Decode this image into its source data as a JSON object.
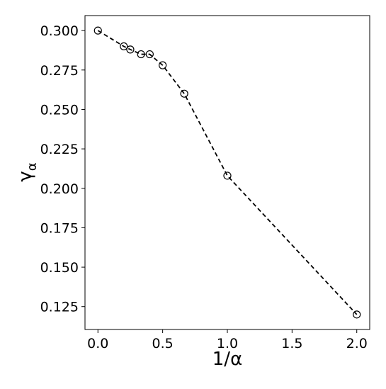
{
  "chart_data": {
    "type": "line",
    "xlabel": "1/α",
    "ylabel_symbol": "γ",
    "ylabel_subscript": "α",
    "x": [
      0,
      0.2,
      0.25,
      0.333,
      0.4,
      0.5,
      0.667,
      1.0,
      2.0
    ],
    "series": [
      {
        "color": "#000000",
        "values": [
          0.3,
          0.29,
          0.288,
          0.285,
          0.285,
          0.278,
          0.26,
          0.208,
          0.12
        ]
      }
    ],
    "xlim": [
      -0.1,
      2.1
    ],
    "ylim": [
      0.1105,
      0.3095
    ],
    "xticks": [
      {
        "value": 0,
        "label": "0.0"
      },
      0.5,
      {
        "value": 1,
        "label": "1.0"
      },
      1.5,
      {
        "value": 2,
        "label": "2.0"
      }
    ],
    "yticks": [
      {
        "value": 0.125,
        "label": "0.125"
      },
      {
        "value": 0.15,
        "label": "0.150"
      },
      {
        "value": 0.175,
        "label": "0.175"
      },
      {
        "value": 0.2,
        "label": "0.200"
      },
      {
        "value": 0.225,
        "label": "0.225"
      },
      {
        "value": 0.25,
        "label": "0.250"
      },
      {
        "value": 0.275,
        "label": "0.275"
      },
      {
        "value": 0.3,
        "label": "0.300"
      }
    ],
    "grid": false,
    "line_style": "dashed",
    "marker": "open-circle"
  }
}
